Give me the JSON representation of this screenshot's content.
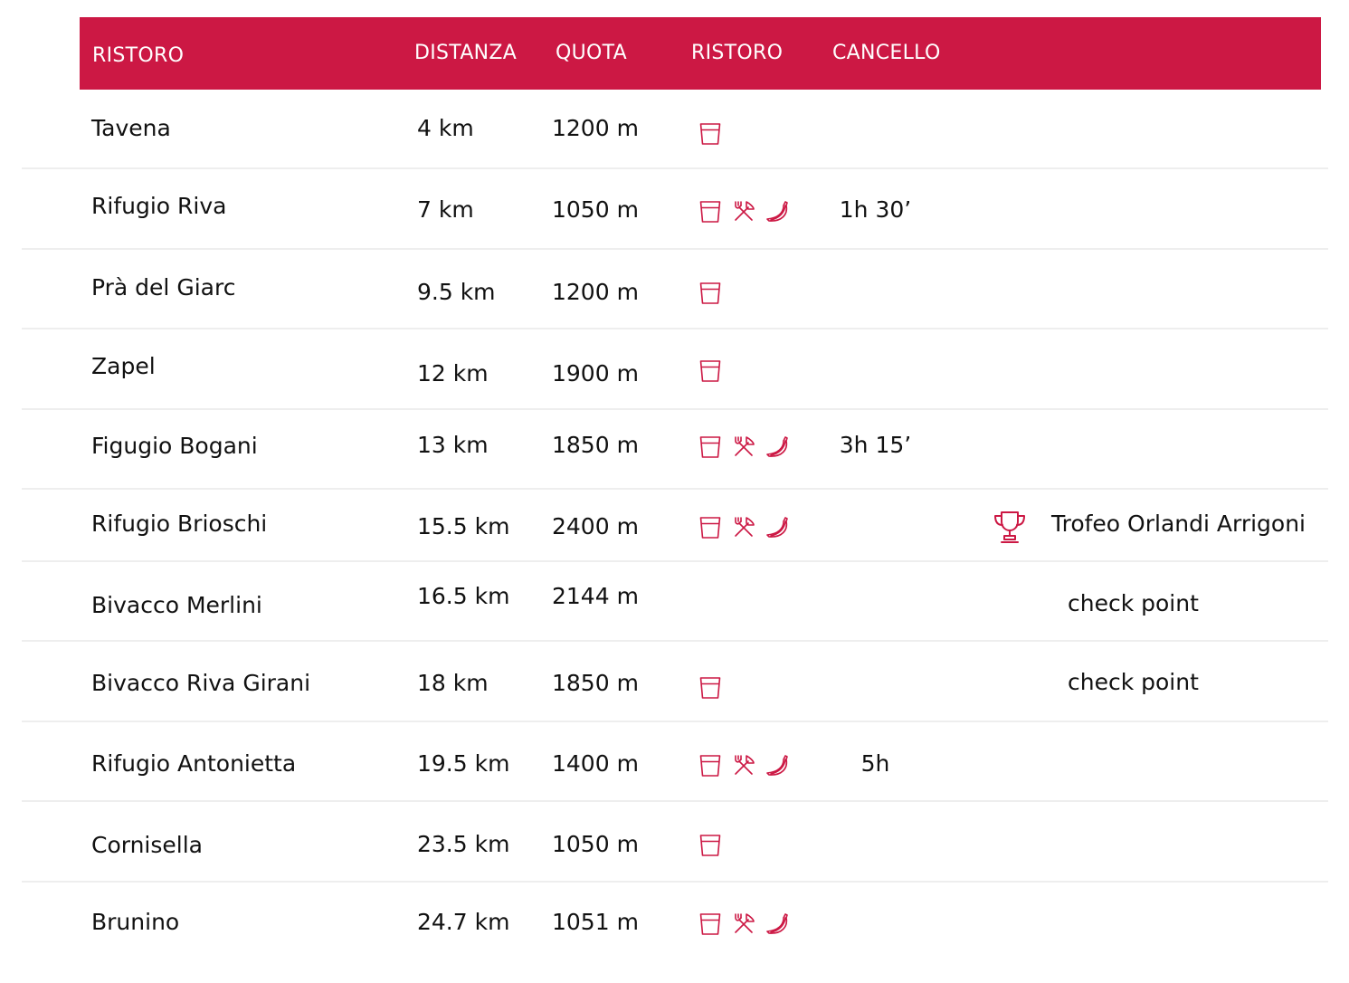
{
  "header": {
    "name": "RISTORO",
    "distance": "DISTANZA",
    "altitude": "QUOTA",
    "aid": "RISTORO",
    "cutoff": "CANCELLO"
  },
  "colors": {
    "accent": "#cc1844",
    "separator": "#eeeeee"
  },
  "icon_names": [
    "drink-cup-icon",
    "fork-knife-icon",
    "banana-icon",
    "trophy-icon"
  ],
  "rows": [
    {
      "name": "Tavena",
      "distance": "4 km",
      "altitude": "1200 m",
      "icons": [
        "drink"
      ],
      "cutoff": "",
      "note": ""
    },
    {
      "name": "Rifugio Riva",
      "distance": "7 km",
      "altitude": "1050 m",
      "icons": [
        "drink",
        "food",
        "banana"
      ],
      "cutoff": "1h 30’",
      "note": ""
    },
    {
      "name": "Prà del Giarc",
      "distance": "9.5 km",
      "altitude": "1200 m",
      "icons": [
        "drink"
      ],
      "cutoff": "",
      "note": ""
    },
    {
      "name": "Zapel",
      "distance": "12 km",
      "altitude": "1900 m",
      "icons": [
        "drink"
      ],
      "cutoff": "",
      "note": ""
    },
    {
      "name": "Figugio Bogani",
      "distance": "13 km",
      "altitude": "1850 m",
      "icons": [
        "drink",
        "food",
        "banana"
      ],
      "cutoff": "3h 15’",
      "note": ""
    },
    {
      "name": "Rifugio Brioschi",
      "distance": "15.5 km",
      "altitude": "2400 m",
      "icons": [
        "drink",
        "food",
        "banana"
      ],
      "cutoff": "",
      "note": "Trofeo Orlandi Arrigoni",
      "trophy": true
    },
    {
      "name": "Bivacco Merlini",
      "distance": "16.5 km",
      "altitude": "2144 m",
      "icons": [],
      "cutoff": "",
      "note": "check point"
    },
    {
      "name": "Bivacco Riva Girani",
      "distance": "18 km",
      "altitude": "1850 m",
      "icons": [
        "drink"
      ],
      "cutoff": "",
      "note": "check point"
    },
    {
      "name": "Rifugio Antonietta",
      "distance": "19.5 km",
      "altitude": "1400 m",
      "icons": [
        "drink",
        "food",
        "banana"
      ],
      "cutoff": "5h",
      "note": ""
    },
    {
      "name": "Cornisella",
      "distance": "23.5 km",
      "altitude": "1050 m",
      "icons": [
        "drink"
      ],
      "cutoff": "",
      "note": ""
    },
    {
      "name": "Brunino",
      "distance": "24.7 km",
      "altitude": "1051 m",
      "icons": [
        "drink",
        "food",
        "banana"
      ],
      "cutoff": "",
      "note": ""
    }
  ]
}
